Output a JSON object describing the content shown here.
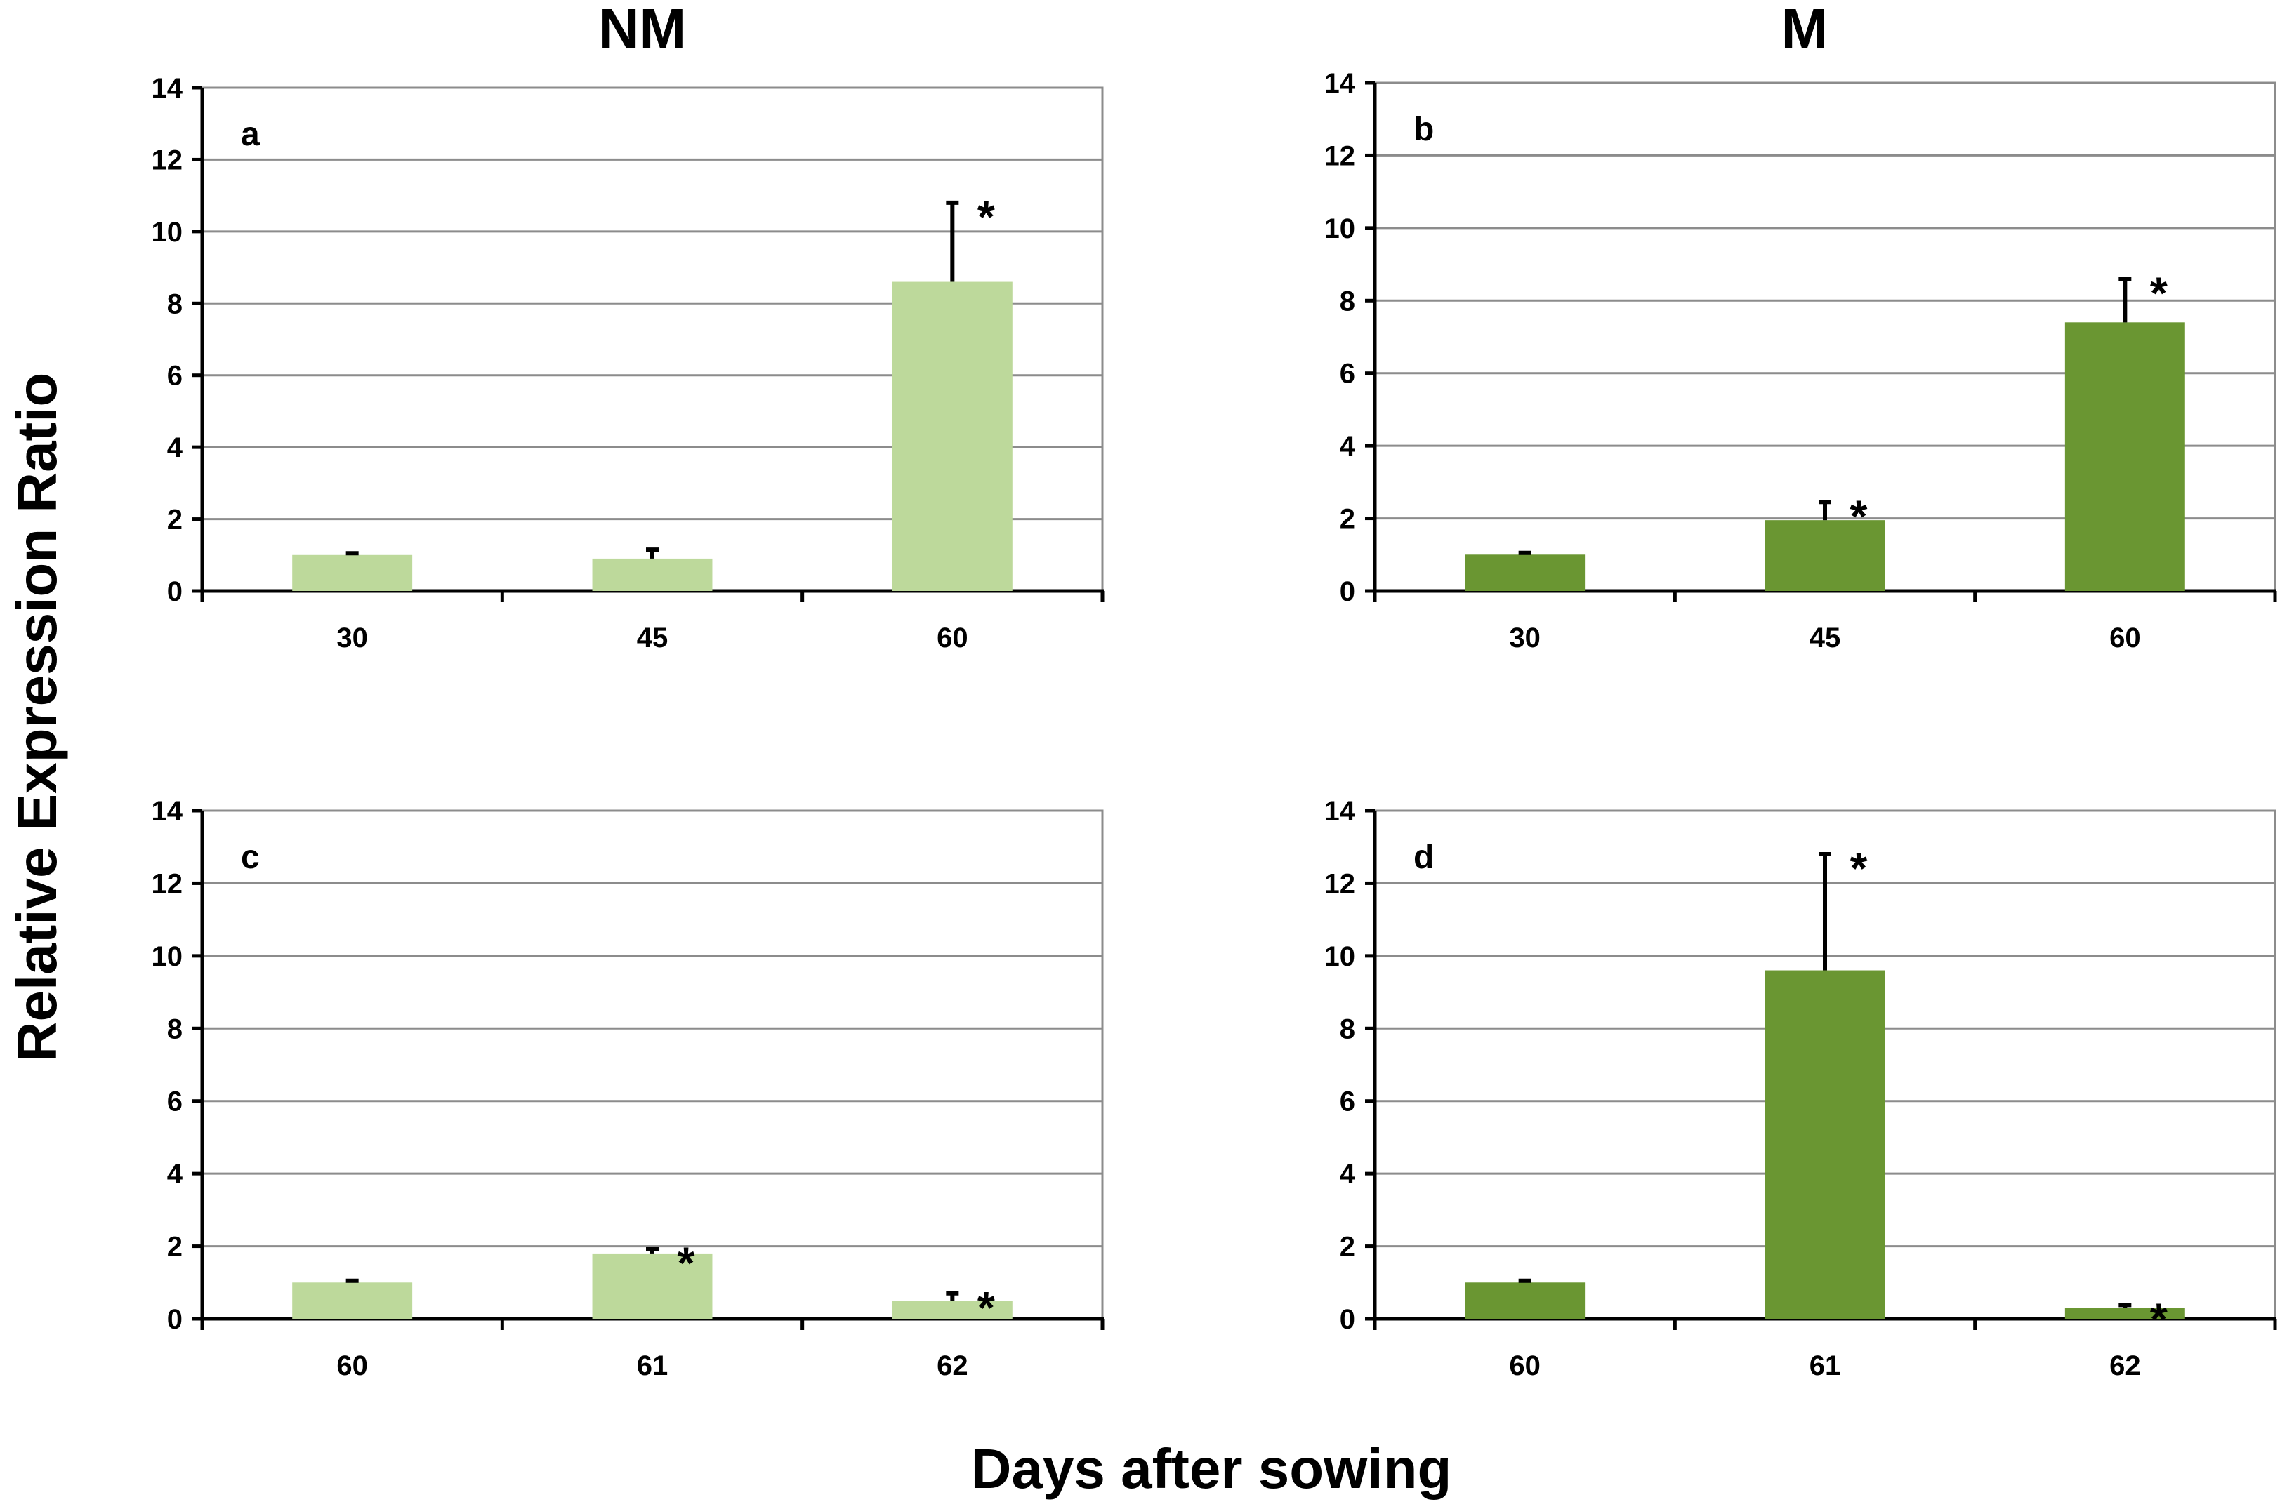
{
  "titles": {
    "nm": "NM",
    "m": "M",
    "ylabel": "Relative  Expression  Ratio",
    "xlabel": "Days after sowing"
  },
  "colors": {
    "nm_bar": "#bdd99b",
    "m_bar": "#6a9632"
  },
  "chart_data": [
    {
      "type": "bar",
      "panel": "a",
      "group": "NM",
      "categories": [
        "30",
        "45",
        "60"
      ],
      "values": [
        1.0,
        0.9,
        8.6
      ],
      "errors": [
        0.05,
        0.25,
        2.2
      ],
      "significant": [
        false,
        false,
        true
      ],
      "star_symbol": "*",
      "ylim": [
        0,
        14
      ],
      "yticks": [
        0,
        2,
        4,
        6,
        8,
        10,
        12,
        14
      ],
      "grid": true
    },
    {
      "type": "bar",
      "panel": "b",
      "group": "M",
      "categories": [
        "30",
        "45",
        "60"
      ],
      "values": [
        1.0,
        1.95,
        7.4
      ],
      "errors": [
        0.05,
        0.5,
        1.2
      ],
      "significant": [
        false,
        true,
        true
      ],
      "star_symbol": "*",
      "ylim": [
        0,
        14
      ],
      "yticks": [
        0,
        2,
        4,
        6,
        8,
        10,
        12,
        14
      ],
      "grid": true
    },
    {
      "type": "bar",
      "panel": "c",
      "group": "NM",
      "categories": [
        "60",
        "61",
        "62"
      ],
      "values": [
        1.0,
        1.8,
        0.5
      ],
      "errors": [
        0.05,
        0.12,
        0.2
      ],
      "significant": [
        false,
        true,
        true
      ],
      "star_symbol": "*",
      "ylim": [
        0,
        14
      ],
      "yticks": [
        0,
        2,
        4,
        6,
        8,
        10,
        12,
        14
      ],
      "grid": true
    },
    {
      "type": "bar",
      "panel": "d",
      "group": "M",
      "categories": [
        "60",
        "61",
        "62"
      ],
      "values": [
        1.0,
        9.6,
        0.3
      ],
      "errors": [
        0.05,
        3.2,
        0.08
      ],
      "significant": [
        false,
        true,
        true
      ],
      "star_symbol": "*",
      "ylim": [
        0,
        14
      ],
      "yticks": [
        0,
        2,
        4,
        6,
        8,
        10,
        12,
        14
      ],
      "grid": true
    }
  ]
}
